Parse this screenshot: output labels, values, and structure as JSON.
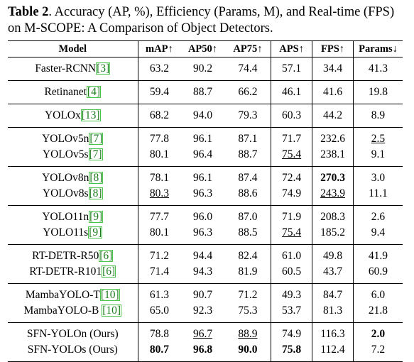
{
  "caption": {
    "label": "Table 2",
    "text": ". Accuracy (AP, %), Efficiency (Params, M), and Real-time (FPS) on M-SCOPE: A Comparison of Object Detectors."
  },
  "headers": [
    "Model",
    "mAP↑",
    "AP50↑",
    "AP75↑",
    "APS↑",
    "FPS↑",
    "Params↓"
  ],
  "groups": [
    [
      {
        "name": "Faster-RCNN",
        "ref": "[3]",
        "values": [
          "63.2",
          "90.2",
          "74.4",
          "57.1",
          "34.4",
          "41.3"
        ]
      }
    ],
    [
      {
        "name": "Retinanet",
        "ref": "[4]",
        "values": [
          "59.4",
          "88.7",
          "66.2",
          "46.1",
          "41.6",
          "19.8"
        ]
      }
    ],
    [
      {
        "name": "YOLOx",
        "ref": "[13]",
        "values": [
          "68.2",
          "94.0",
          "79.3",
          "60.3",
          "44.2",
          "8.9"
        ]
      }
    ],
    [
      {
        "name": "YOLOv5n",
        "ref": "[7]",
        "values": [
          "77.8",
          "96.1",
          "87.1",
          "71.7",
          "232.6",
          "2.5"
        ],
        "underline": [
          5
        ]
      },
      {
        "name": "YOLOv5s",
        "ref": "[7]",
        "values": [
          "80.1",
          "96.4",
          "88.7",
          "75.4",
          "238.1",
          "9.1"
        ],
        "underline": [
          3
        ]
      }
    ],
    [
      {
        "name": "YOLOv8n",
        "ref": "[8]",
        "values": [
          "78.1",
          "96.1",
          "87.4",
          "72.4",
          "270.3",
          "3.0"
        ],
        "bold": [
          4
        ]
      },
      {
        "name": "YOLOv8s",
        "ref": "[8]",
        "values": [
          "80.3",
          "96.3",
          "88.6",
          "74.9",
          "243.9",
          "11.1"
        ],
        "underline": [
          0,
          4
        ]
      }
    ],
    [
      {
        "name": "YOLO11n",
        "ref": "[9]",
        "values": [
          "77.7",
          "96.0",
          "87.0",
          "71.9",
          "208.3",
          "2.6"
        ]
      },
      {
        "name": "YOLO11s",
        "ref": "[9]",
        "values": [
          "80.1",
          "96.3",
          "88.5",
          "75.4",
          "185.2",
          "9.4"
        ],
        "underline": [
          3
        ]
      }
    ],
    [
      {
        "name": "RT-DETR-R50",
        "ref": "[6]",
        "values": [
          "71.2",
          "94.4",
          "82.4",
          "61.0",
          "49.8",
          "41.9"
        ]
      },
      {
        "name": "RT-DETR-R101",
        "ref": "[6]",
        "values": [
          "71.4",
          "94.3",
          "81.9",
          "60.5",
          "43.7",
          "60.9"
        ]
      }
    ],
    [
      {
        "name": "MambaYOLO-T",
        "ref": "[10]",
        "values": [
          "61.3",
          "90.7",
          "71.2",
          "49.3",
          "84.7",
          "6.0"
        ]
      },
      {
        "name": "MambaYOLO-B ",
        "ref": "[10]",
        "values": [
          "65.0",
          "92.3",
          "75.3",
          "53.7",
          "81.3",
          "21.8"
        ]
      }
    ],
    [
      {
        "name": "SFN-YOLOn (Ours)",
        "ref": "",
        "values": [
          "78.8",
          "96.7",
          "88.9",
          "74.9",
          "116.3",
          "2.0"
        ],
        "underline": [
          1,
          2
        ],
        "bold": [
          5
        ]
      },
      {
        "name": "SFN-YOLOs (Ours)",
        "ref": "",
        "values": [
          "80.7",
          "96.8",
          "90.0",
          "75.8",
          "112.4",
          "7.2"
        ],
        "bold": [
          0,
          1,
          2,
          3
        ]
      }
    ]
  ]
}
